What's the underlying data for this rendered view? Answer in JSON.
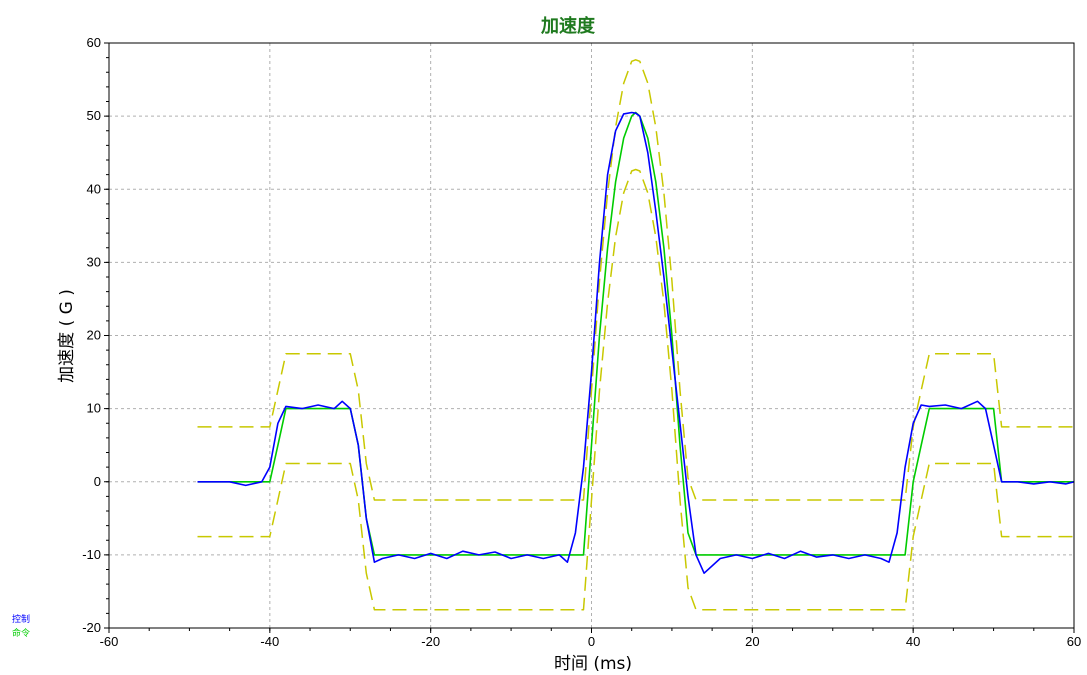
{
  "chart_data": {
    "type": "line",
    "title": "加速度",
    "xlabel": "时间 (ms)",
    "ylabel": "加速度 ( G )",
    "xlim": [
      -60,
      60
    ],
    "ylim": [
      -20,
      60
    ],
    "xticks": [
      -60,
      -40,
      -20,
      0,
      20,
      40,
      60
    ],
    "yticks": [
      -20,
      -10,
      0,
      10,
      20,
      30,
      40,
      50,
      60
    ],
    "grid": true,
    "legend_placement": "bottom-left",
    "series": [
      {
        "name": "控制",
        "color": "#0000ff",
        "style": "solid",
        "x": [
          -49,
          -45,
          -43,
          -41,
          -40,
          -39,
          -38,
          -36,
          -34,
          -32,
          -31,
          -30,
          -29,
          -28,
          -27,
          -26,
          -24,
          -22,
          -20,
          -18,
          -16,
          -14,
          -12,
          -10,
          -8,
          -6,
          -4,
          -3,
          -2,
          -1,
          0,
          1,
          2,
          3,
          4,
          5,
          5.5,
          6,
          7,
          8,
          9,
          10,
          11,
          12,
          13,
          14,
          16,
          18,
          20,
          22,
          24,
          26,
          28,
          30,
          32,
          34,
          36,
          37,
          38,
          39,
          40,
          41,
          42,
          44,
          46,
          48,
          49,
          50,
          51,
          53,
          55,
          57,
          59,
          60
        ],
        "y": [
          0,
          0,
          -0.5,
          0,
          2,
          8,
          10.3,
          10,
          10.5,
          10,
          11,
          10,
          5,
          -5,
          -11,
          -10.5,
          -10,
          -10.5,
          -9.8,
          -10.5,
          -9.5,
          -10,
          -9.6,
          -10.5,
          -10,
          -10.5,
          -10,
          -11,
          -7,
          2,
          15,
          30,
          42,
          48,
          50.3,
          50.5,
          50.4,
          50,
          45,
          37,
          28,
          18,
          8,
          -2,
          -10,
          -12.5,
          -10.5,
          -10,
          -10.5,
          -9.8,
          -10.5,
          -9.5,
          -10.3,
          -10,
          -10.5,
          -10,
          -10.5,
          -11,
          -7,
          2,
          8,
          10.5,
          10.3,
          10.5,
          10,
          11,
          10,
          5,
          0,
          0,
          -0.3,
          0,
          -0.3,
          0
        ]
      },
      {
        "name": "命令",
        "color": "#00cc00",
        "style": "solid",
        "x": [
          -49,
          -40,
          -39,
          -38,
          -30,
          -29,
          -28,
          -27,
          -1,
          0,
          1,
          2,
          3,
          4,
          5,
          5.5,
          6,
          7,
          8,
          9,
          10,
          11,
          12,
          13,
          39,
          40,
          41,
          42,
          50,
          51,
          60
        ],
        "y": [
          0,
          0,
          5,
          10,
          10,
          5,
          -5,
          -10,
          -10,
          5,
          20,
          32,
          41,
          47,
          50,
          50.5,
          50,
          47,
          41,
          32,
          20,
          5,
          -7,
          -10,
          -10,
          0,
          5,
          10,
          10,
          0,
          0
        ]
      },
      {
        "name": "",
        "color": "#c8c800",
        "style": "dashed",
        "x": [
          -49,
          -40,
          -39,
          -38,
          -30,
          -29,
          -28,
          -27,
          -1,
          0,
          1,
          2,
          3,
          4,
          5,
          5.5,
          6,
          7,
          8,
          9,
          10,
          11,
          12,
          13,
          39,
          40,
          41,
          42,
          50,
          51,
          60
        ],
        "y": [
          7.5,
          7.5,
          12.5,
          17.5,
          17.5,
          12.5,
          2.5,
          -2.5,
          -2.5,
          12.5,
          27.5,
          39.5,
          48.5,
          54.5,
          57.5,
          57.7,
          57.5,
          54.5,
          48.5,
          39.5,
          27.5,
          12.5,
          0.5,
          -2.5,
          -2.5,
          7.5,
          12.5,
          17.5,
          17.5,
          7.5,
          7.5
        ]
      },
      {
        "name": "",
        "color": "#c8c800",
        "style": "dashed",
        "x": [
          -49,
          -40,
          -39,
          -38,
          -30,
          -29,
          -28,
          -27,
          -1,
          0,
          1,
          2,
          3,
          4,
          5,
          5.5,
          6,
          7,
          8,
          9,
          10,
          11,
          12,
          13,
          39,
          40,
          41,
          42,
          50,
          51,
          60
        ],
        "y": [
          -7.5,
          -7.5,
          -2.5,
          2.5,
          2.5,
          -2.5,
          -12.5,
          -17.5,
          -17.5,
          -2.5,
          12.5,
          24.5,
          33.5,
          39.5,
          42.5,
          42.7,
          42.5,
          39.5,
          33.5,
          24.5,
          12.5,
          -2.5,
          -14.5,
          -17.5,
          -17.5,
          -7.5,
          -2.5,
          2.5,
          2.5,
          -7.5,
          -7.5
        ]
      }
    ]
  }
}
